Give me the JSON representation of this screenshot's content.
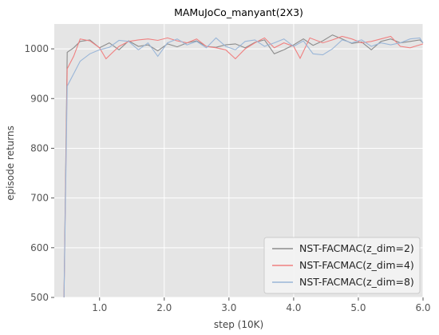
{
  "chart_data": {
    "type": "line",
    "title": "MAMuJoCo_manyant(2X3)",
    "xlabel": "step (10K)",
    "ylabel": "episode returns",
    "xlim": [
      0.3,
      6.0
    ],
    "ylim": [
      500,
      1050
    ],
    "xticks": [
      1.0,
      2.0,
      3.0,
      4.0,
      5.0,
      6.0
    ],
    "xtick_labels": [
      "1.0",
      "2.0",
      "3.0",
      "4.0",
      "5.0",
      "6.0"
    ],
    "yticks": [
      500,
      600,
      700,
      800,
      900,
      1000
    ],
    "ytick_labels": [
      "500",
      "600",
      "700",
      "800",
      "900",
      "1000"
    ],
    "grid": true,
    "legend_position": "bottom-right",
    "series": [
      {
        "name": "NST-FACMAC(z_dim=2)",
        "color": "#8c8c8c",
        "x": [
          0.45,
          0.5,
          0.6,
          0.7,
          0.85,
          1.0,
          1.15,
          1.3,
          1.45,
          1.6,
          1.75,
          1.9,
          2.05,
          2.2,
          2.35,
          2.5,
          2.65,
          2.8,
          2.95,
          3.1,
          3.25,
          3.4,
          3.55,
          3.7,
          3.85,
          4.0,
          4.15,
          4.3,
          4.45,
          4.6,
          4.75,
          4.9,
          5.05,
          5.2,
          5.35,
          5.5,
          5.65,
          5.8,
          5.95,
          6.0
        ],
        "y": [
          500,
          993,
          1002,
          1015,
          1018,
          1002,
          1012,
          998,
          1016,
          1005,
          1008,
          996,
          1010,
          1004,
          1012,
          1016,
          1005,
          1003,
          1008,
          1010,
          1002,
          1013,
          1018,
          990,
          998,
          1008,
          1020,
          1007,
          1016,
          1028,
          1020,
          1011,
          1014,
          998,
          1015,
          1020,
          1012,
          1015,
          1018,
          1012
        ]
      },
      {
        "name": "NST-FACMAC(z_dim=4)",
        "color": "#f08080",
        "x": [
          0.45,
          0.5,
          0.6,
          0.7,
          0.85,
          1.0,
          1.1,
          1.3,
          1.45,
          1.6,
          1.75,
          1.9,
          2.05,
          2.2,
          2.35,
          2.5,
          2.65,
          2.8,
          2.95,
          3.1,
          3.25,
          3.4,
          3.55,
          3.7,
          3.85,
          4.0,
          4.1,
          4.25,
          4.45,
          4.6,
          4.75,
          4.9,
          5.05,
          5.2,
          5.35,
          5.5,
          5.65,
          5.8,
          5.95,
          6.0
        ],
        "y": [
          500,
          960,
          985,
          1020,
          1016,
          1002,
          980,
          1005,
          1015,
          1018,
          1020,
          1017,
          1022,
          1016,
          1012,
          1020,
          1005,
          1002,
          998,
          980,
          1000,
          1012,
          1022,
          1002,
          1012,
          1005,
          981,
          1022,
          1012,
          1018,
          1025,
          1020,
          1012,
          1015,
          1020,
          1025,
          1005,
          1002,
          1008,
          1010
        ]
      },
      {
        "name": "NST-FACMAC(z_dim=8)",
        "color": "#9ab6d8",
        "x": [
          0.45,
          0.5,
          0.6,
          0.7,
          0.85,
          1.0,
          1.15,
          1.3,
          1.45,
          1.6,
          1.75,
          1.9,
          2.05,
          2.2,
          2.35,
          2.5,
          2.65,
          2.8,
          2.95,
          3.1,
          3.25,
          3.4,
          3.55,
          3.7,
          3.85,
          4.0,
          4.15,
          4.3,
          4.45,
          4.6,
          4.75,
          4.9,
          5.05,
          5.2,
          5.35,
          5.5,
          5.65,
          5.8,
          5.95,
          6.0
        ],
        "y": [
          500,
          925,
          950,
          975,
          990,
          998,
          1003,
          1017,
          1015,
          998,
          1012,
          985,
          1012,
          1020,
          1008,
          1015,
          1002,
          1022,
          1005,
          998,
          1015,
          1018,
          1005,
          1012,
          1020,
          1005,
          1016,
          990,
          988,
          1000,
          1018,
          1012,
          1018,
          1005,
          1012,
          1008,
          1012,
          1020,
          1022,
          1012
        ]
      }
    ]
  }
}
